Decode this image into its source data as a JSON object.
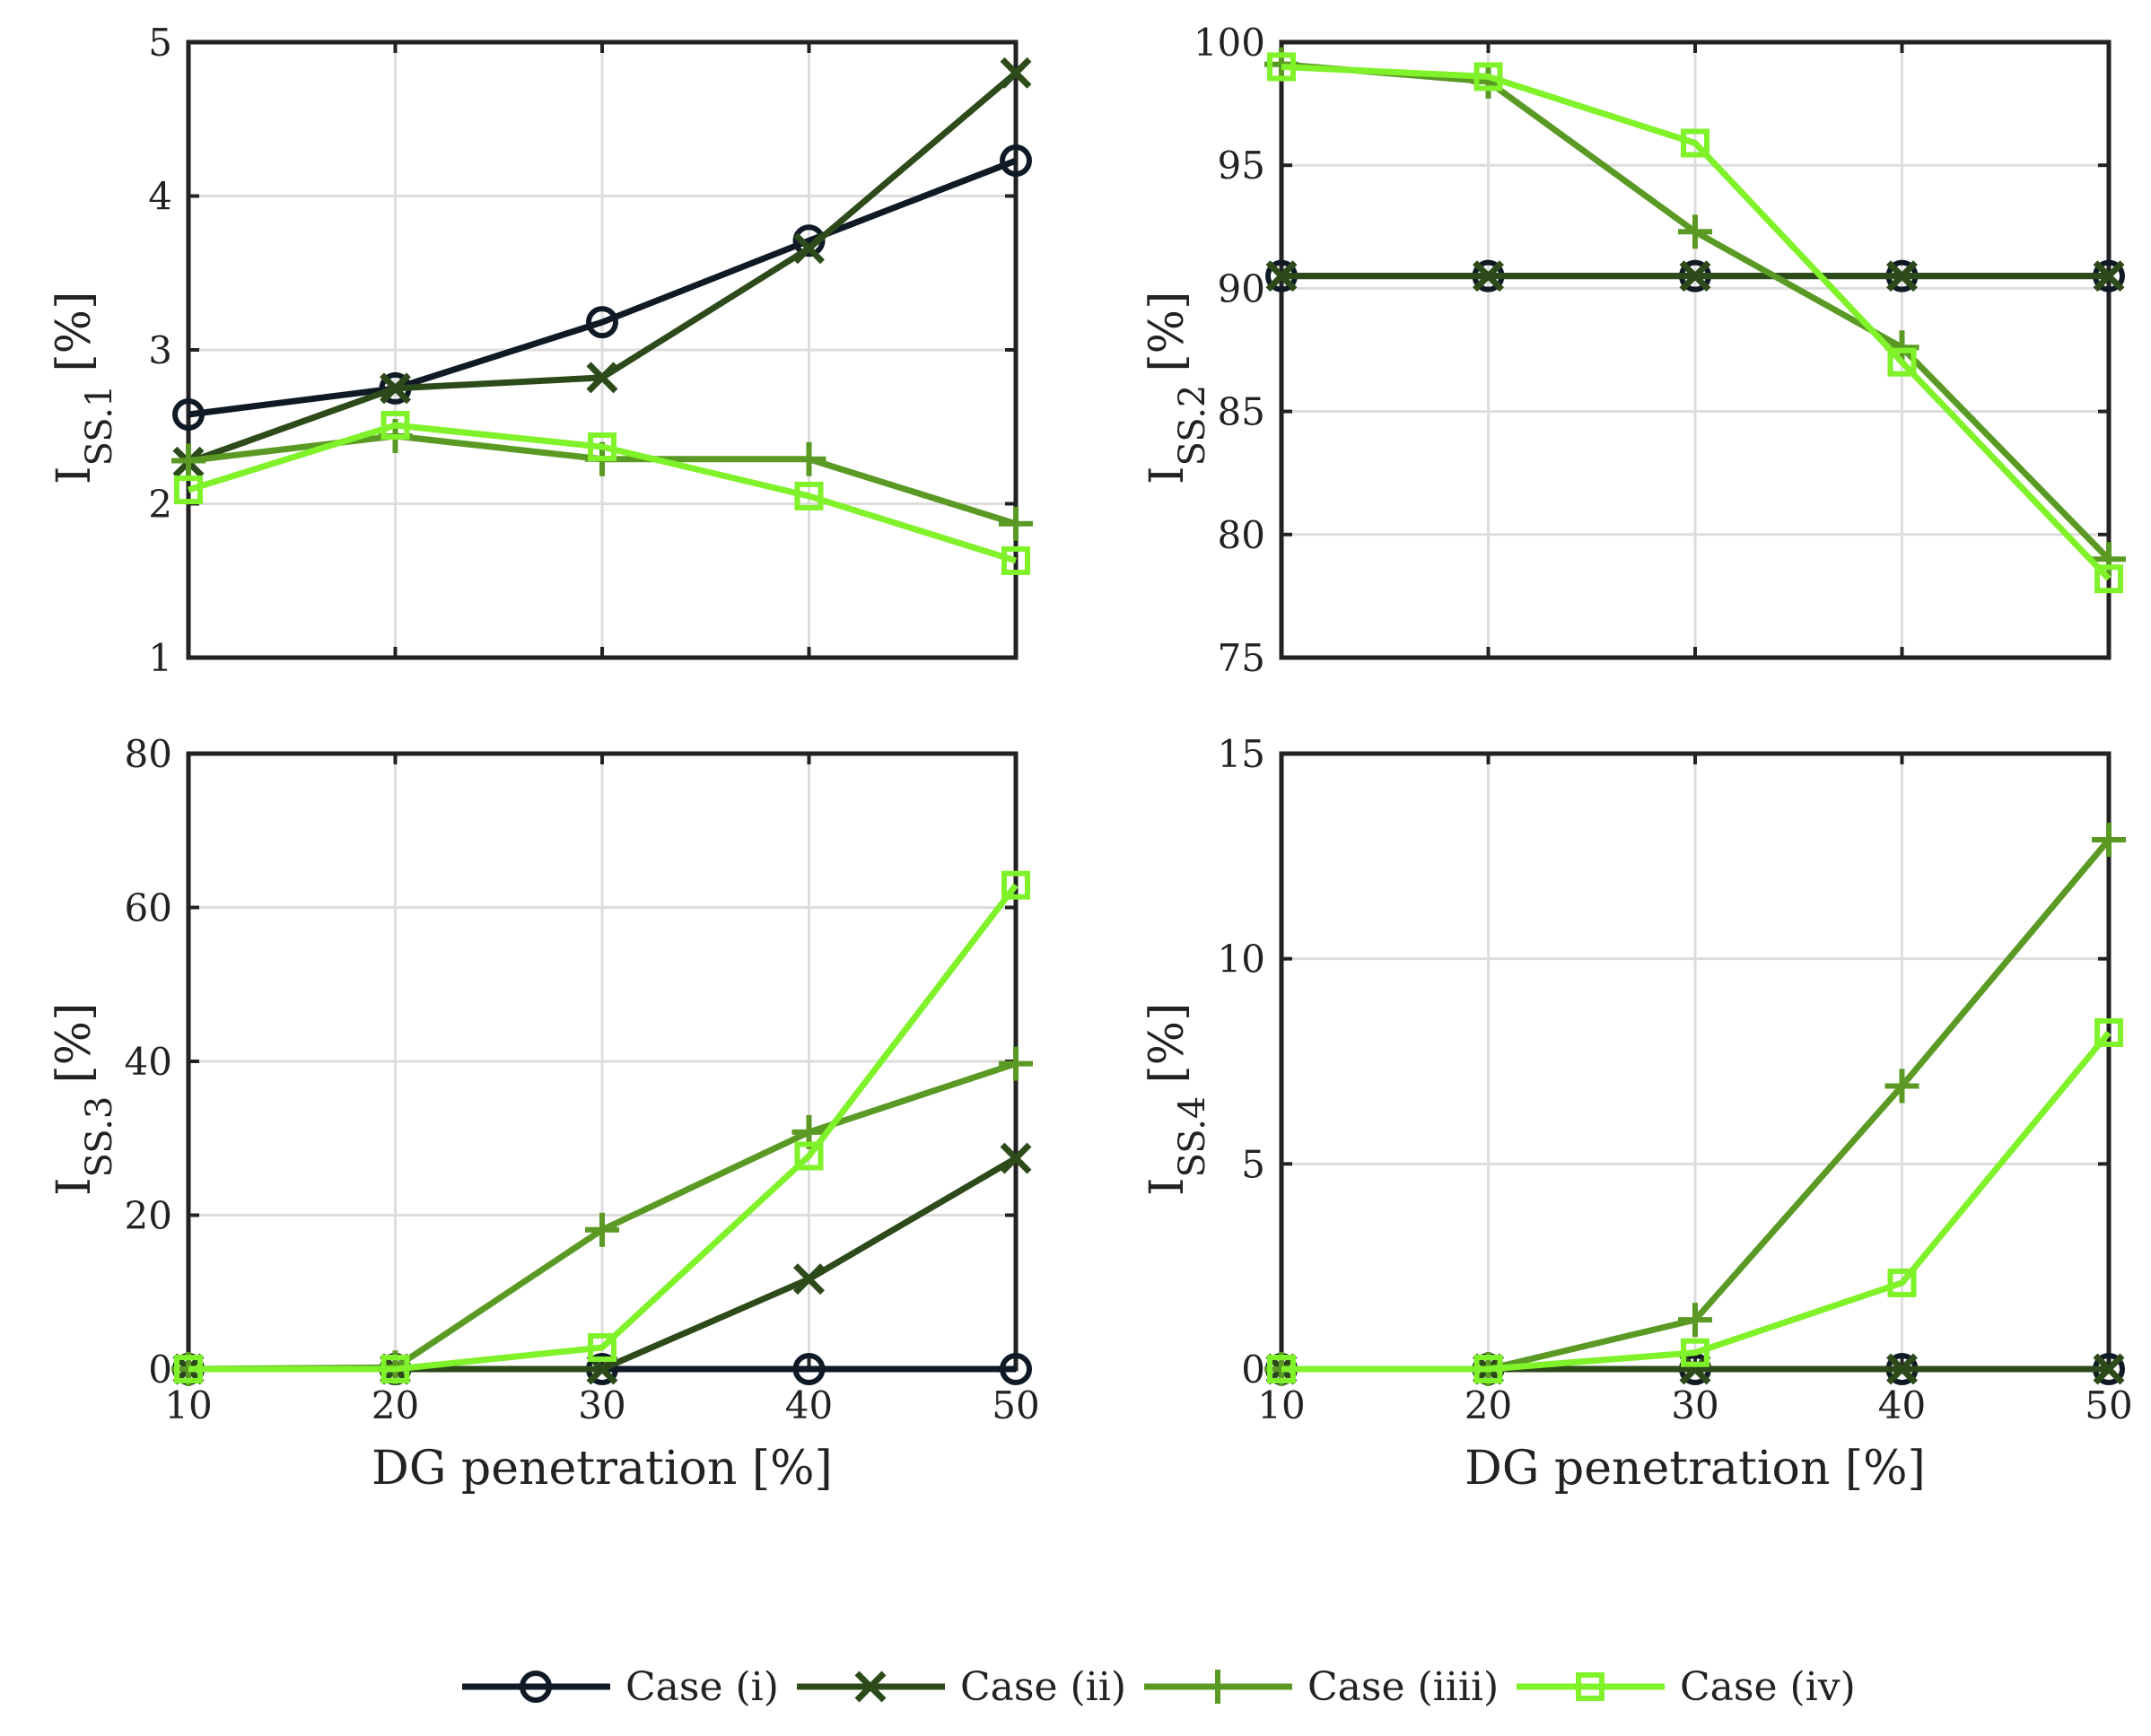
{
  "legend_entries": [
    "Case (i)",
    "Case (ii)",
    "Case (iiii)",
    "Case (iv)"
  ],
  "series_styles": [
    {
      "name": "Case (i)",
      "color": "#0f1a26",
      "marker": "circle"
    },
    {
      "name": "Case (ii)",
      "color": "#2d4a1a",
      "marker": "x"
    },
    {
      "name": "Case (iiii)",
      "color": "#5a9a24",
      "marker": "plus"
    },
    {
      "name": "Case (iv)",
      "color": "#7ff22a",
      "marker": "square"
    }
  ],
  "chart_data": [
    {
      "type": "line",
      "ylabel": "I",
      "ylabel_sub": "SS.1",
      "ylabel_unit": "[%]",
      "xlabel": "",
      "x": [
        10,
        20,
        30,
        40,
        50
      ],
      "xlim": [
        10,
        50
      ],
      "ylim": [
        1,
        5
      ],
      "yticks": [
        1,
        2,
        3,
        4,
        5
      ],
      "ytick_labels": [
        "1",
        "2",
        "3",
        "4",
        "5"
      ],
      "xticks": [
        10,
        20,
        30,
        40,
        50
      ],
      "xtick_labels": [],
      "series": [
        {
          "name": "Case (i)",
          "values": [
            2.58,
            2.75,
            3.18,
            3.71,
            4.23
          ]
        },
        {
          "name": "Case (ii)",
          "values": [
            2.27,
            2.75,
            2.82,
            3.66,
            4.8
          ]
        },
        {
          "name": "Case (iiii)",
          "values": [
            2.28,
            2.44,
            2.29,
            2.29,
            1.87
          ]
        },
        {
          "name": "Case (iv)",
          "values": [
            2.09,
            2.51,
            2.37,
            2.05,
            1.63
          ]
        }
      ]
    },
    {
      "type": "line",
      "ylabel": "I",
      "ylabel_sub": "SS.2",
      "ylabel_unit": "[%]",
      "xlabel": "",
      "x": [
        10,
        20,
        30,
        40,
        50
      ],
      "xlim": [
        10,
        50
      ],
      "ylim": [
        75,
        100
      ],
      "yticks": [
        75,
        80,
        85,
        90,
        95,
        100
      ],
      "ytick_labels": [
        "75",
        "80",
        "85",
        "90",
        "95",
        "100"
      ],
      "xticks": [
        10,
        20,
        30,
        40,
        50
      ],
      "xtick_labels": [],
      "series": [
        {
          "name": "Case (i)",
          "values": [
            90.5,
            90.5,
            90.5,
            90.5,
            90.5
          ]
        },
        {
          "name": "Case (ii)",
          "values": [
            90.5,
            90.5,
            90.5,
            90.5,
            90.5
          ]
        },
        {
          "name": "Case (iiii)",
          "values": [
            99.1,
            98.4,
            92.3,
            87.6,
            79.0
          ]
        },
        {
          "name": "Case (iv)",
          "values": [
            99.0,
            98.6,
            95.9,
            87.0,
            78.2
          ]
        }
      ]
    },
    {
      "type": "line",
      "ylabel": "I",
      "ylabel_sub": "SS.3",
      "ylabel_unit": "[%]",
      "xlabel": "DG penetration [%]",
      "x": [
        10,
        20,
        30,
        40,
        50
      ],
      "xlim": [
        10,
        50
      ],
      "ylim": [
        0,
        80
      ],
      "yticks": [
        0,
        20,
        40,
        60,
        80
      ],
      "ytick_labels": [
        "0",
        "20",
        "40",
        "60",
        "80"
      ],
      "xticks": [
        10,
        20,
        30,
        40,
        50
      ],
      "xtick_labels": [
        "10",
        "20",
        "30",
        "40",
        "50"
      ],
      "series": [
        {
          "name": "Case (i)",
          "values": [
            0,
            0,
            0,
            0,
            0
          ]
        },
        {
          "name": "Case (ii)",
          "values": [
            0,
            0,
            0,
            11.7,
            27.4
          ]
        },
        {
          "name": "Case (iiii)",
          "values": [
            0,
            0.2,
            18.1,
            30.8,
            39.7
          ]
        },
        {
          "name": "Case (iv)",
          "values": [
            0,
            0,
            2.8,
            27.7,
            62.9
          ]
        }
      ]
    },
    {
      "type": "line",
      "ylabel": "I",
      "ylabel_sub": "SS.4",
      "ylabel_unit": "[%]",
      "xlabel": "DG penetration [%]",
      "x": [
        10,
        20,
        30,
        40,
        50
      ],
      "xlim": [
        10,
        50
      ],
      "ylim": [
        0,
        15
      ],
      "yticks": [
        0,
        5,
        10,
        15
      ],
      "ytick_labels": [
        "0",
        "5",
        "10",
        "15"
      ],
      "xticks": [
        10,
        20,
        30,
        40,
        50
      ],
      "xtick_labels": [
        "10",
        "20",
        "30",
        "40",
        "50"
      ],
      "series": [
        {
          "name": "Case (i)",
          "values": [
            0,
            0,
            0,
            0,
            0
          ]
        },
        {
          "name": "Case (ii)",
          "values": [
            0,
            0,
            0,
            0,
            0
          ]
        },
        {
          "name": "Case (iiii)",
          "values": [
            0,
            0,
            1.2,
            6.9,
            12.9
          ]
        },
        {
          "name": "Case (iv)",
          "values": [
            0,
            0,
            0.4,
            2.1,
            8.2
          ]
        }
      ]
    }
  ]
}
